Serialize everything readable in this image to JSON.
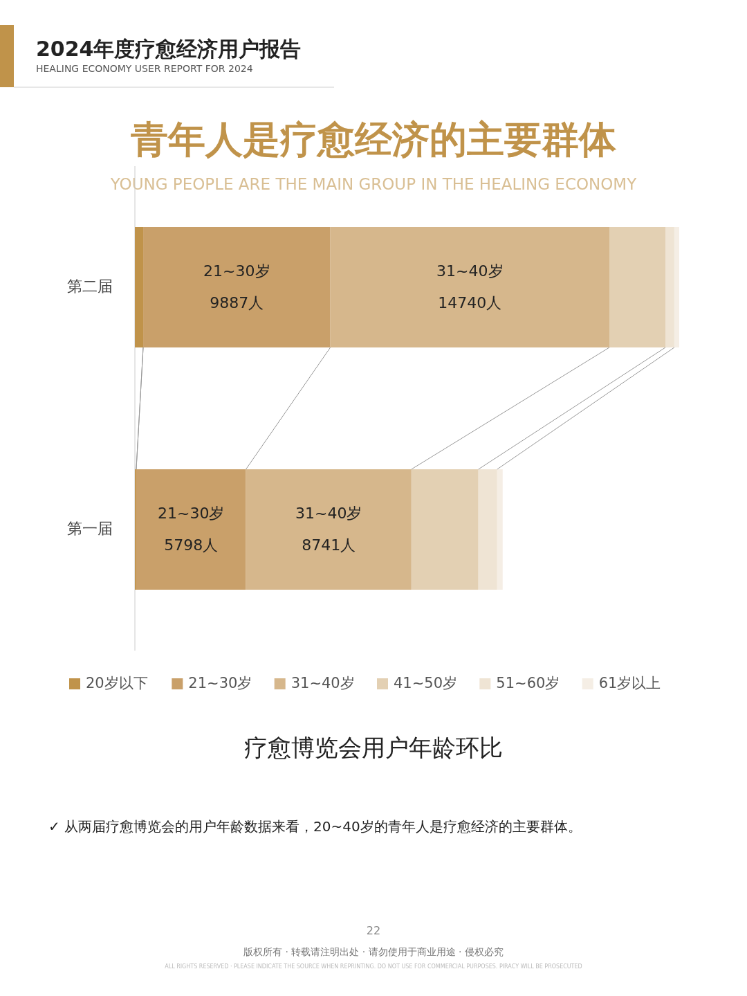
{
  "chart_data": {
    "type": "bar",
    "orientation": "horizontal",
    "stacked": true,
    "title": "青年人是疗愈经济的主要群体",
    "subtitle": "YOUNG PEOPLE ARE THE MAIN GROUP IN THE HEALING ECONOMY",
    "categories": [
      "第二届",
      "第一届"
    ],
    "series": [
      {
        "name": "20岁以下",
        "color": "#c0934a",
        "values": [
          440,
          70
        ],
        "value_labels": [
          null,
          null
        ]
      },
      {
        "name": "21~30岁",
        "color": "#c9a06a",
        "values": [
          9887,
          5798
        ],
        "value_labels": [
          "9887人",
          "5798人"
        ]
      },
      {
        "name": "31~40岁",
        "color": "#d6b78c",
        "values": [
          14740,
          8741
        ],
        "value_labels": [
          "14740人",
          "8741人"
        ]
      },
      {
        "name": "41~50岁",
        "color": "#e3d0b3",
        "values": [
          2960,
          3540
        ],
        "value_labels": [
          null,
          null
        ]
      },
      {
        "name": "51~60岁",
        "color": "#efe4d4",
        "values": [
          470,
          990
        ],
        "value_labels": [
          null,
          null
        ]
      },
      {
        "name": "61岁以上",
        "color": "#f5eee5",
        "values": [
          260,
          290
        ],
        "value_labels": [
          null,
          null
        ]
      }
    ],
    "legend": "bottom",
    "annotations": [
      "2024年度疗愈经济用户报告",
      "HEALING ECONOMY USER REPORT FOR 2024",
      "疗愈博览会用户年龄环比",
      "✓ 从两届疗愈博览会的用户年龄数据来看，20~40岁的青年人是疗愈经济的主要群体。",
      "22",
      "版权所有 · 转载请注明出处 · 请勿使用于商业用途 · 侵权必究",
      "ALL RIGHTS RESERVED · PLEASE INDICATE THE SOURCE WHEN REPRINTING. DO NOT USE FOR COMMERCIAL PURPOSES. PIRACY WILL BE PROSECUTED"
    ]
  }
}
